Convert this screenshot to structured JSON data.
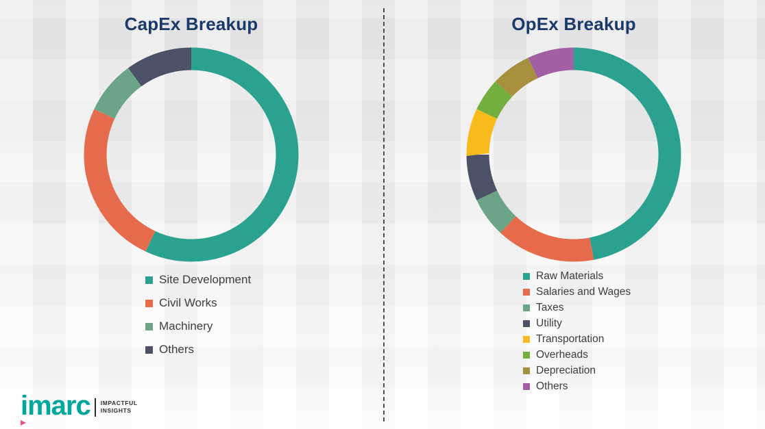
{
  "colors": {
    "title_navy": "#1a3a6b",
    "brand_teal": "#00a79b",
    "accent_pink": "#ec4f8e",
    "legend_text": "#3d3d3d",
    "divider_gray": "#4d4d4d"
  },
  "logo": {
    "brand": "imarc",
    "tagline_line1": "IMPACTFUL",
    "tagline_line2": "INSIGHTS"
  },
  "chart_data": [
    {
      "type": "pie",
      "donut": true,
      "title": "CapEx Breakup",
      "legend_position": "bottom",
      "categories": [
        "Site Development",
        "Civil Works",
        "Machinery",
        "Others"
      ],
      "values": [
        57,
        25,
        8,
        10
      ],
      "colors": [
        "#2ba28f",
        "#e56b4c",
        "#6ca487",
        "#4b5268"
      ]
    },
    {
      "type": "pie",
      "donut": true,
      "title": "OpEx Breakup",
      "legend_position": "bottom",
      "categories": [
        "Raw Materials",
        "Salaries and Wages",
        "Taxes",
        "Utility",
        "Transportation",
        "Overheads",
        "Depreciation",
        "Others"
      ],
      "values": [
        47,
        15,
        6,
        7,
        7,
        5,
        6,
        7
      ],
      "colors": [
        "#2ba28f",
        "#e56b4c",
        "#6ca487",
        "#4b5268",
        "#f8bb1c",
        "#73af3f",
        "#a6903e",
        "#a35fa4"
      ]
    }
  ]
}
